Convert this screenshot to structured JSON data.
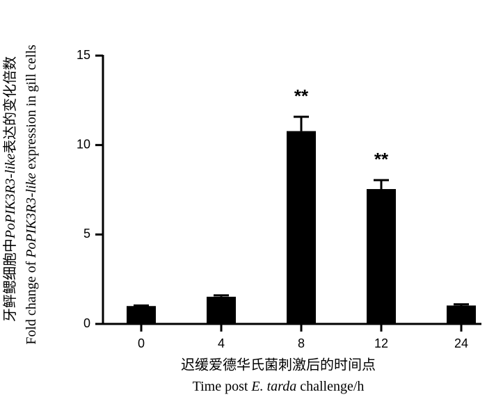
{
  "chart_data": {
    "type": "bar",
    "categories": [
      "0",
      "4",
      "8",
      "12",
      "24"
    ],
    "values": [
      1.0,
      1.52,
      10.78,
      7.54,
      1.03
    ],
    "errors": [
      0.03,
      0.08,
      0.8,
      0.5,
      0.07
    ],
    "significance": [
      null,
      null,
      "**",
      "**",
      null
    ],
    "color": "#000000",
    "ylim": [
      0,
      15
    ],
    "yticks": [
      0,
      5,
      10,
      15
    ],
    "ylabel_cn": [
      "牙鲆鳃细胞中",
      "PoPIK3R3-like",
      "表达的变化倍数"
    ],
    "ylabel_en": [
      "Fold change of ",
      "PoPIK3R3-like",
      " expression in gill cells"
    ],
    "xlabel_cn": "迟缓爱德华氏菌刺激后的时间点",
    "xlabel_en": [
      "Time post ",
      "E. tarda",
      " challenge/h"
    ]
  }
}
